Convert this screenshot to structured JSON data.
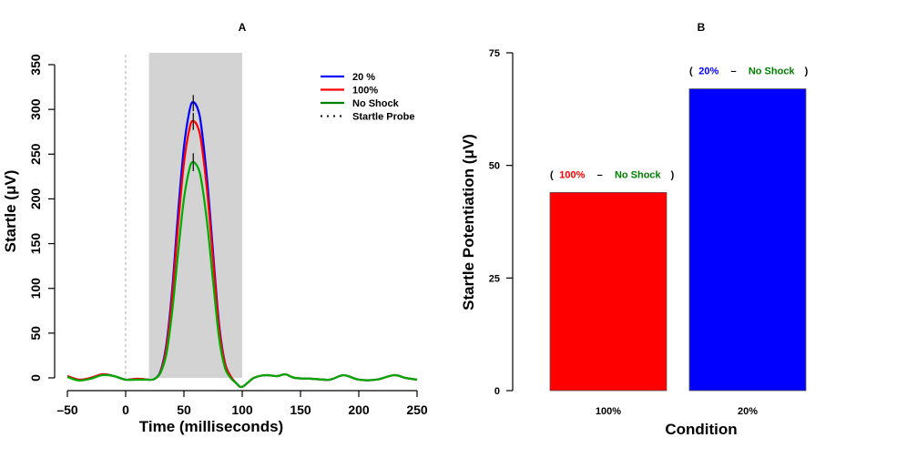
{
  "chart_data": [
    {
      "panel": "A",
      "type": "line",
      "title": "A",
      "xlabel": "Time (milliseconds)",
      "ylabel": "Startle (μV)",
      "xlim": [
        -50,
        250
      ],
      "ylim": [
        0,
        350
      ],
      "xticks": [
        -50,
        0,
        50,
        100,
        150,
        200,
        250
      ],
      "yticks": [
        0,
        50,
        100,
        150,
        200,
        250,
        300,
        350
      ],
      "shaded_window": [
        20,
        100
      ],
      "startle_probe_x": 0,
      "grid": false,
      "legend_position": "top-right",
      "series": [
        {
          "name": "20 %",
          "color": "#0000ff",
          "x": [
            -50,
            -40,
            -30,
            -20,
            -10,
            0,
            10,
            20,
            25,
            30,
            35,
            40,
            45,
            50,
            55,
            58,
            62,
            65,
            70,
            75,
            80,
            85,
            90,
            95,
            100,
            110,
            120,
            130,
            137,
            145,
            160,
            175,
            187,
            200,
            215,
            230,
            240,
            250
          ],
          "y": [
            2,
            -2,
            0,
            4,
            2,
            -2,
            -1,
            -2,
            -1,
            8,
            38,
            100,
            185,
            258,
            300,
            308,
            300,
            280,
            220,
            140,
            62,
            18,
            2,
            -6,
            -10,
            0,
            3,
            2,
            4,
            0,
            -1,
            -2,
            3,
            -2,
            -2,
            3,
            0,
            -2
          ]
        },
        {
          "name": "100%",
          "color": "#ff0000",
          "x": [
            -50,
            -40,
            -30,
            -20,
            -10,
            0,
            10,
            20,
            25,
            30,
            35,
            40,
            45,
            50,
            55,
            58,
            62,
            65,
            70,
            75,
            80,
            85,
            90,
            95,
            100,
            110,
            120,
            130,
            137,
            145,
            160,
            175,
            187,
            200,
            215,
            230,
            240,
            250
          ],
          "y": [
            2,
            -2,
            0,
            4,
            2,
            -2,
            -1,
            -2,
            -1,
            7,
            34,
            92,
            170,
            240,
            280,
            287,
            280,
            262,
            207,
            132,
            58,
            17,
            2,
            -6,
            -10,
            0,
            3,
            2,
            4,
            0,
            -1,
            -2,
            3,
            -2,
            -2,
            3,
            0,
            -2
          ]
        },
        {
          "name": "No Shock",
          "color": "#00aa00",
          "x": [
            -50,
            -40,
            -30,
            -20,
            -10,
            0,
            10,
            20,
            25,
            30,
            35,
            40,
            45,
            50,
            55,
            58,
            62,
            65,
            70,
            75,
            80,
            85,
            90,
            95,
            100,
            110,
            120,
            130,
            137,
            145,
            160,
            175,
            187,
            200,
            215,
            230,
            240,
            250
          ],
          "y": [
            1,
            -3,
            -1,
            3,
            2,
            -2,
            -2,
            -2,
            -1,
            6,
            27,
            75,
            140,
            200,
            235,
            241,
            235,
            220,
            172,
            108,
            46,
            12,
            0,
            -6,
            -10,
            0,
            3,
            2,
            4,
            0,
            -1,
            -2,
            3,
            -2,
            -2,
            3,
            0,
            -2
          ]
        }
      ],
      "error_bars": [
        {
          "x": 58,
          "low": 298,
          "high": 316,
          "color": "#000000"
        },
        {
          "x": 58,
          "low": 277,
          "high": 296,
          "color": "#000000"
        },
        {
          "x": 58,
          "low": 231,
          "high": 251,
          "color": "#000000"
        }
      ],
      "legend": [
        {
          "label": "20 %",
          "color": "#0000ff",
          "style": "solid"
        },
        {
          "label": "100%",
          "color": "#ff0000",
          "style": "solid"
        },
        {
          "label": "No Shock",
          "color": "#008000",
          "style": "solid"
        },
        {
          "label": "Startle Probe",
          "color": "#000000",
          "style": "dotted"
        }
      ]
    },
    {
      "panel": "B",
      "type": "bar",
      "title": "B",
      "xlabel": "Condition",
      "ylabel": "Startle Potentiation (μV)",
      "ylim": [
        0,
        75
      ],
      "yticks": [
        0,
        25,
        50,
        75
      ],
      "categories": [
        "100%",
        "20%"
      ],
      "values": [
        44,
        67
      ],
      "colors": [
        "#ff0000",
        "#0000ff"
      ],
      "grid": false,
      "annotations": [
        {
          "open": "(",
          "cond": "100%",
          "cond_color": "#ff0000",
          "dash": "–",
          "ref": "No Shock",
          "ref_color": "#008000",
          "close": ")"
        },
        {
          "open": "(",
          "cond": "20%",
          "cond_color": "#0000ff",
          "dash": "–",
          "ref": "No Shock",
          "ref_color": "#008000",
          "close": ")"
        }
      ]
    }
  ]
}
